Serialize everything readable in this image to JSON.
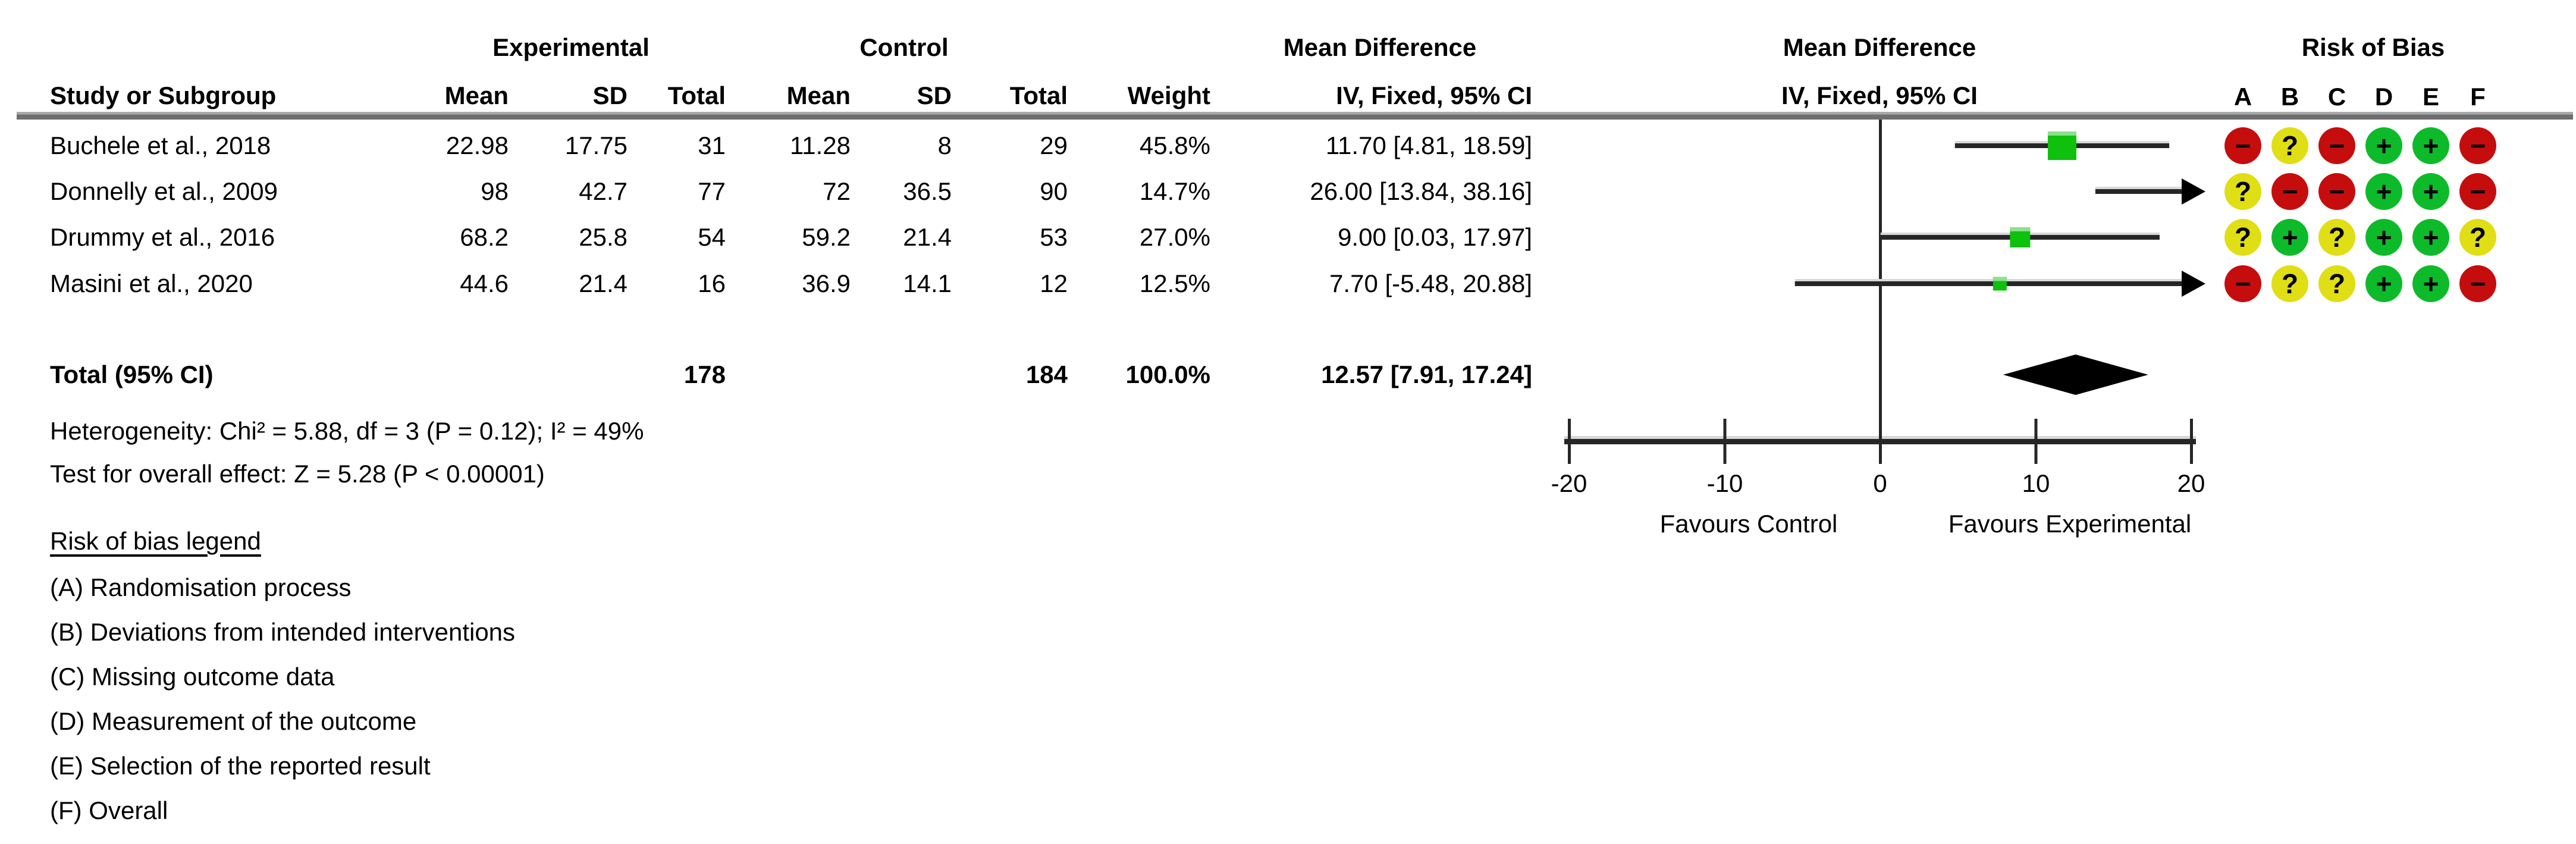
{
  "header": {
    "group_experimental": "Experimental",
    "group_control": "Control",
    "md_text_col": "Mean Difference",
    "md_plot_col": "Mean Difference",
    "risk_of_bias": "Risk of Bias",
    "study": "Study or Subgroup",
    "mean_exp": "Mean",
    "sd_exp": "SD",
    "total_exp": "Total",
    "mean_ctrl": "Mean",
    "sd_ctrl": "SD",
    "total_ctrl": "Total",
    "weight": "Weight",
    "iv_text_col": "IV, Fixed, 95% CI",
    "iv_plot_col": "IV, Fixed, 95% CI",
    "rob_letters": [
      "A",
      "B",
      "C",
      "D",
      "E",
      "F"
    ]
  },
  "rows": [
    {
      "study": "Buchele et al., 2018",
      "mean_e": "22.98",
      "sd_e": "17.75",
      "n_e": "31",
      "mean_c": "11.28",
      "sd_c": "8",
      "n_c": "29",
      "weight": "45.8%",
      "ci_text": "11.70 [4.81, 18.59]"
    },
    {
      "study": "Donnelly et al., 2009",
      "mean_e": "98",
      "sd_e": "42.7",
      "n_e": "77",
      "mean_c": "72",
      "sd_c": "36.5",
      "n_c": "90",
      "weight": "14.7%",
      "ci_text": "26.00 [13.84, 38.16]"
    },
    {
      "study": "Drummy et al., 2016",
      "mean_e": "68.2",
      "sd_e": "25.8",
      "n_e": "54",
      "mean_c": "59.2",
      "sd_c": "21.4",
      "n_c": "53",
      "weight": "27.0%",
      "ci_text": "9.00 [0.03, 17.97]"
    },
    {
      "study": "Masini et al., 2020",
      "mean_e": "44.6",
      "sd_e": "21.4",
      "n_e": "16",
      "mean_c": "36.9",
      "sd_c": "14.1",
      "n_c": "12",
      "weight": "12.5%",
      "ci_text": "7.70 [-5.48, 20.88]"
    }
  ],
  "total_row": {
    "label": "Total (95% CI)",
    "n_e": "178",
    "n_c": "184",
    "weight": "100.0%",
    "ci_text": "12.57 [7.91, 17.24]"
  },
  "stats": {
    "heterogeneity": "Heterogeneity: Chi² = 5.88, df = 3 (P = 0.12); I² = 49%",
    "overall_effect": "Test for overall effect: Z = 5.28 (P < 0.00001)"
  },
  "axis": {
    "tick_labels": [
      "-20",
      "-10",
      "0",
      "10",
      "20"
    ],
    "favours_left": "Favours Control",
    "favours_right": "Favours Experimental"
  },
  "legend": {
    "title": "Risk of bias legend",
    "items": [
      "(A) Randomisation process",
      "(B) Deviations from intended interventions",
      "(C) Missing outcome data",
      "(D) Measurement of the outcome",
      "(E) Selection of the reported result",
      "(F) Overall"
    ]
  },
  "colors": {
    "rob_red": "#c50d0d",
    "rob_yellow": "#e0de14",
    "rob_green": "#0dbb2a",
    "square_green": "#0dc10d",
    "square_green_light": "#8ce08c",
    "line_dark": "#262626",
    "line_highlight": "#d8d8d8",
    "separator_gray": "#8a8a8a"
  },
  "chart_data": {
    "type": "forest",
    "effect_measure": "Mean Difference, IV, Fixed, 95% CI",
    "xlim": [
      -20,
      20
    ],
    "ticks": [
      -20,
      -10,
      0,
      10,
      20
    ],
    "xlabel_left": "Favours Control",
    "xlabel_right": "Favours Experimental",
    "studies": [
      {
        "name": "Buchele et al., 2018",
        "mean_exp": 22.98,
        "sd_exp": 17.75,
        "n_exp": 31,
        "mean_ctrl": 11.28,
        "sd_ctrl": 8,
        "n_ctrl": 29,
        "weight_pct": 45.8,
        "md": 11.7,
        "ci_low": 4.81,
        "ci_high": 18.59,
        "rob": [
          "-",
          "?",
          "-",
          "+",
          "+",
          "-"
        ]
      },
      {
        "name": "Donnelly et al., 2009",
        "mean_exp": 98,
        "sd_exp": 42.7,
        "n_exp": 77,
        "mean_ctrl": 72,
        "sd_ctrl": 36.5,
        "n_ctrl": 90,
        "weight_pct": 14.7,
        "md": 26.0,
        "ci_low": 13.84,
        "ci_high": 38.16,
        "rob": [
          "?",
          "-",
          "-",
          "+",
          "+",
          "-"
        ]
      },
      {
        "name": "Drummy et al., 2016",
        "mean_exp": 68.2,
        "sd_exp": 25.8,
        "n_exp": 54,
        "mean_ctrl": 59.2,
        "sd_ctrl": 21.4,
        "n_ctrl": 53,
        "weight_pct": 27.0,
        "md": 9.0,
        "ci_low": 0.03,
        "ci_high": 17.97,
        "rob": [
          "?",
          "+",
          "?",
          "+",
          "+",
          "?"
        ]
      },
      {
        "name": "Masini et al., 2020",
        "mean_exp": 44.6,
        "sd_exp": 21.4,
        "n_exp": 16,
        "mean_ctrl": 36.9,
        "sd_ctrl": 14.1,
        "n_ctrl": 12,
        "weight_pct": 12.5,
        "md": 7.7,
        "ci_low": -5.48,
        "ci_high": 20.88,
        "rob": [
          "-",
          "?",
          "?",
          "+",
          "+",
          "-"
        ]
      }
    ],
    "total": {
      "n_exp": 178,
      "n_ctrl": 184,
      "weight_pct": 100.0,
      "md": 12.57,
      "ci_low": 7.91,
      "ci_high": 17.24
    },
    "heterogeneity": {
      "chi2": 5.88,
      "df": 3,
      "p": 0.12,
      "i2_pct": 49
    },
    "overall_effect": {
      "z": 5.28,
      "p": "< 0.00001"
    }
  }
}
